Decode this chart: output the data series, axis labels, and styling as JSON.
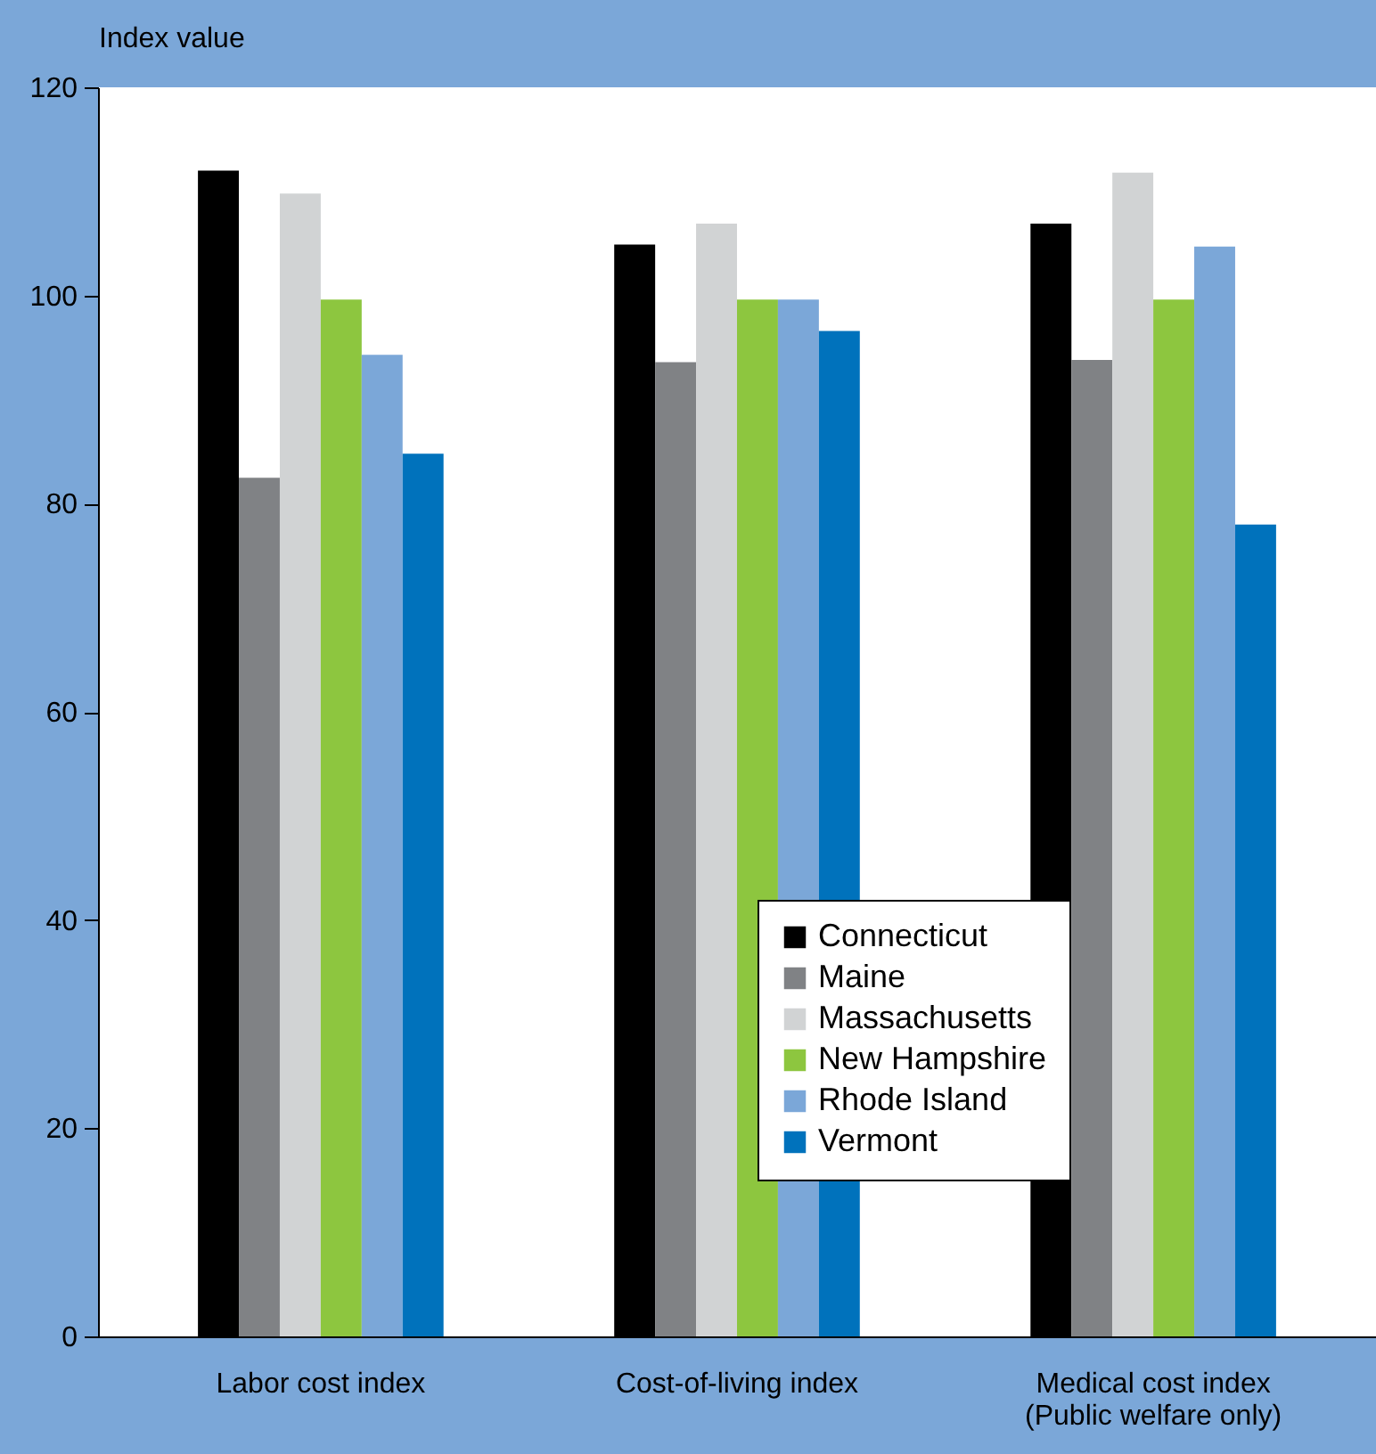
{
  "chart_data": {
    "type": "bar",
    "ylabel": "Index value",
    "categories": [
      "Labor cost index",
      "Cost-of-living index",
      "Medical cost index\n(Public welfare only)"
    ],
    "series": [
      {
        "name": "Connecticut",
        "color": "#000000",
        "values": [
          112,
          104.9,
          106.9
        ]
      },
      {
        "name": "Maine",
        "color": "#808285",
        "values": [
          82.5,
          93.6,
          93.8
        ]
      },
      {
        "name": "Massachusetts",
        "color": "#d1d3d4",
        "values": [
          109.8,
          106.9,
          111.8
        ]
      },
      {
        "name": "New Hampshire",
        "color": "#8dc63f",
        "values": [
          99.6,
          99.6,
          99.6
        ]
      },
      {
        "name": "Rhode Island",
        "color": "#7ba7d8",
        "values": [
          94.3,
          99.6,
          104.7
        ]
      },
      {
        "name": "Vermont",
        "color": "#0072bc",
        "values": [
          84.8,
          96.6,
          78
        ]
      }
    ],
    "ylim": [
      0,
      120
    ],
    "yticks": [
      0,
      20,
      40,
      60,
      80,
      100,
      120
    ],
    "grid": false,
    "legend": "bottom"
  }
}
